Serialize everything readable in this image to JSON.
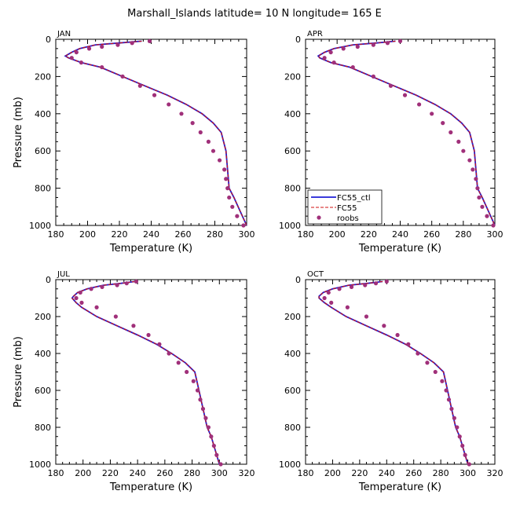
{
  "title": "Marshall_Islands  latitude= 10 N longitude= 165 E",
  "legend": {
    "entries": [
      {
        "label": "FC55_ctl",
        "color": "#1f1fd6",
        "style": "solid"
      },
      {
        "label": "FC55",
        "color": "#d01010",
        "style": "dashed"
      },
      {
        "label": "roobs",
        "color": "#a0307a",
        "style": "markers"
      }
    ]
  },
  "chart_data": [
    {
      "type": "line",
      "panel": "JAN",
      "xlabel": "Temperature (K)",
      "ylabel": "Pressure (mb)",
      "xlim": [
        180,
        300
      ],
      "ylim": [
        1000,
        0
      ],
      "xticks": [
        "180",
        "200",
        "220",
        "240",
        "260",
        "280",
        "300"
      ],
      "yticks": [
        "0",
        "200",
        "400",
        "600",
        "800",
        "1000"
      ],
      "series": [
        {
          "name": "FC55_ctl",
          "color": "#1f1fd6",
          "x": [
            234,
            220,
            205,
            195,
            190,
            186,
            188,
            196,
            208,
            222,
            236,
            250,
            262,
            272,
            279,
            284,
            287,
            288,
            289,
            292,
            296,
            300
          ],
          "y": [
            10,
            20,
            30,
            50,
            70,
            90,
            100,
            125,
            150,
            200,
            250,
            300,
            350,
            400,
            450,
            500,
            600,
            700,
            800,
            850,
            925,
            1000
          ]
        },
        {
          "name": "FC55",
          "color": "#d01010",
          "x": [
            234,
            220,
            205,
            195,
            190,
            186,
            188,
            196,
            208,
            222,
            236,
            250,
            262,
            272,
            279,
            284,
            287,
            288,
            289,
            292,
            296,
            300
          ],
          "y": [
            10,
            20,
            30,
            50,
            70,
            90,
            100,
            125,
            150,
            200,
            250,
            300,
            350,
            400,
            450,
            500,
            600,
            700,
            800,
            850,
            925,
            1000
          ]
        },
        {
          "name": "roobs",
          "color": "#a0307a",
          "x": [
            239,
            228,
            219,
            209,
            201,
            193,
            190,
            196,
            209,
            222,
            233,
            242,
            251,
            259,
            266,
            271,
            276,
            279,
            283,
            286,
            287,
            288,
            289,
            291,
            294,
            298
          ],
          "y": [
            10,
            20,
            30,
            40,
            50,
            70,
            100,
            125,
            150,
            200,
            250,
            300,
            350,
            400,
            450,
            500,
            550,
            600,
            650,
            700,
            750,
            800,
            850,
            900,
            950,
            1000
          ]
        }
      ]
    },
    {
      "type": "line",
      "panel": "APR",
      "xlabel": "Temperature (K)",
      "ylabel": "",
      "xlim": [
        180,
        300
      ],
      "ylim": [
        1000,
        0
      ],
      "xticks": [
        "180",
        "200",
        "220",
        "240",
        "260",
        "280",
        "300"
      ],
      "yticks": [
        "0",
        "200",
        "400",
        "600",
        "800",
        "1000"
      ],
      "series": [
        {
          "name": "FC55_ctl",
          "color": "#1f1fd6",
          "x": [
            237,
            225,
            210,
            198,
            192,
            188,
            189,
            196,
            208,
            222,
            236,
            250,
            262,
            272,
            279,
            284,
            287,
            288,
            289,
            292,
            296,
            300
          ],
          "y": [
            10,
            20,
            30,
            50,
            70,
            90,
            100,
            125,
            150,
            200,
            250,
            300,
            350,
            400,
            450,
            500,
            600,
            700,
            800,
            850,
            925,
            1000
          ]
        },
        {
          "name": "FC55",
          "color": "#d01010",
          "x": [
            237,
            225,
            210,
            198,
            192,
            188,
            189,
            196,
            208,
            222,
            236,
            250,
            262,
            272,
            279,
            284,
            287,
            288,
            289,
            292,
            296,
            300
          ],
          "y": [
            10,
            20,
            30,
            50,
            70,
            90,
            100,
            125,
            150,
            200,
            250,
            300,
            350,
            400,
            450,
            500,
            600,
            700,
            800,
            850,
            925,
            1000
          ]
        },
        {
          "name": "roobs",
          "color": "#a0307a",
          "x": [
            240,
            232,
            223,
            213,
            204,
            196,
            192,
            198,
            210,
            223,
            234,
            243,
            252,
            260,
            267,
            272,
            277,
            280,
            284,
            286,
            288,
            289,
            290,
            292,
            295,
            299
          ],
          "y": [
            10,
            20,
            30,
            40,
            50,
            70,
            100,
            125,
            150,
            200,
            250,
            300,
            350,
            400,
            450,
            500,
            550,
            600,
            650,
            700,
            750,
            800,
            850,
            900,
            950,
            1000
          ]
        }
      ]
    },
    {
      "type": "line",
      "panel": "JUL",
      "xlabel": "Temperature (K)",
      "ylabel": "Pressure (mb)",
      "xlim": [
        180,
        320
      ],
      "ylim": [
        1000,
        0
      ],
      "xticks": [
        "180",
        "200",
        "220",
        "240",
        "260",
        "280",
        "300",
        "320"
      ],
      "yticks": [
        "0",
        "200",
        "400",
        "600",
        "800",
        "1000"
      ],
      "series": [
        {
          "name": "FC55_ctl",
          "color": "#1f1fd6",
          "x": [
            238,
            228,
            215,
            203,
            196,
            193,
            192,
            195,
            199,
            210,
            225,
            240,
            254,
            265,
            275,
            282,
            285,
            288,
            291,
            294,
            297,
            300
          ],
          "y": [
            10,
            20,
            30,
            50,
            70,
            90,
            100,
            125,
            150,
            200,
            250,
            300,
            350,
            400,
            450,
            500,
            600,
            700,
            800,
            850,
            925,
            1000
          ]
        },
        {
          "name": "FC55",
          "color": "#d01010",
          "x": [
            238,
            228,
            215,
            203,
            196,
            193,
            192,
            195,
            199,
            210,
            225,
            240,
            254,
            265,
            275,
            282,
            285,
            288,
            291,
            294,
            297,
            300
          ],
          "y": [
            10,
            20,
            30,
            50,
            70,
            90,
            100,
            125,
            150,
            200,
            250,
            300,
            350,
            400,
            450,
            500,
            600,
            700,
            800,
            850,
            925,
            1000
          ]
        },
        {
          "name": "roobs",
          "color": "#a0307a",
          "x": [
            239,
            232,
            225,
            214,
            206,
            198,
            195,
            199,
            210,
            224,
            237,
            248,
            256,
            263,
            270,
            276,
            281,
            284,
            286,
            288,
            290,
            292,
            294,
            296,
            298,
            301
          ],
          "y": [
            10,
            20,
            30,
            40,
            50,
            70,
            100,
            125,
            150,
            200,
            250,
            300,
            350,
            400,
            450,
            500,
            550,
            600,
            650,
            700,
            750,
            800,
            850,
            900,
            950,
            1000
          ]
        }
      ]
    },
    {
      "type": "line",
      "panel": "OCT",
      "xlabel": "Temperature (K)",
      "ylabel": "",
      "xlim": [
        180,
        320
      ],
      "ylim": [
        1000,
        0
      ],
      "xticks": [
        "180",
        "200",
        "220",
        "240",
        "260",
        "280",
        "300",
        "320"
      ],
      "yticks": [
        "0",
        "200",
        "400",
        "600",
        "800",
        "1000"
      ],
      "series": [
        {
          "name": "FC55_ctl",
          "color": "#1f1fd6",
          "x": [
            237,
            226,
            212,
            200,
            193,
            190,
            190,
            194,
            199,
            210,
            225,
            240,
            254,
            265,
            275,
            282,
            285,
            288,
            291,
            294,
            297,
            300
          ],
          "y": [
            10,
            20,
            30,
            50,
            70,
            90,
            100,
            125,
            150,
            200,
            250,
            300,
            350,
            400,
            450,
            500,
            600,
            700,
            800,
            850,
            925,
            1000
          ]
        },
        {
          "name": "FC55",
          "color": "#d01010",
          "x": [
            237,
            226,
            212,
            200,
            193,
            190,
            190,
            194,
            199,
            210,
            225,
            240,
            254,
            265,
            275,
            282,
            285,
            288,
            291,
            294,
            297,
            300
          ],
          "y": [
            10,
            20,
            30,
            50,
            70,
            90,
            100,
            125,
            150,
            200,
            250,
            300,
            350,
            400,
            450,
            500,
            600,
            700,
            800,
            850,
            925,
            1000
          ]
        },
        {
          "name": "roobs",
          "color": "#a0307a",
          "x": [
            240,
            232,
            224,
            214,
            205,
            197,
            194,
            199,
            211,
            225,
            238,
            248,
            256,
            263,
            270,
            276,
            281,
            284,
            286,
            288,
            290,
            292,
            294,
            296,
            298,
            301
          ],
          "y": [
            10,
            20,
            30,
            40,
            50,
            70,
            100,
            125,
            150,
            200,
            250,
            300,
            350,
            400,
            450,
            500,
            550,
            600,
            650,
            700,
            750,
            800,
            850,
            900,
            950,
            1000
          ]
        }
      ]
    }
  ]
}
